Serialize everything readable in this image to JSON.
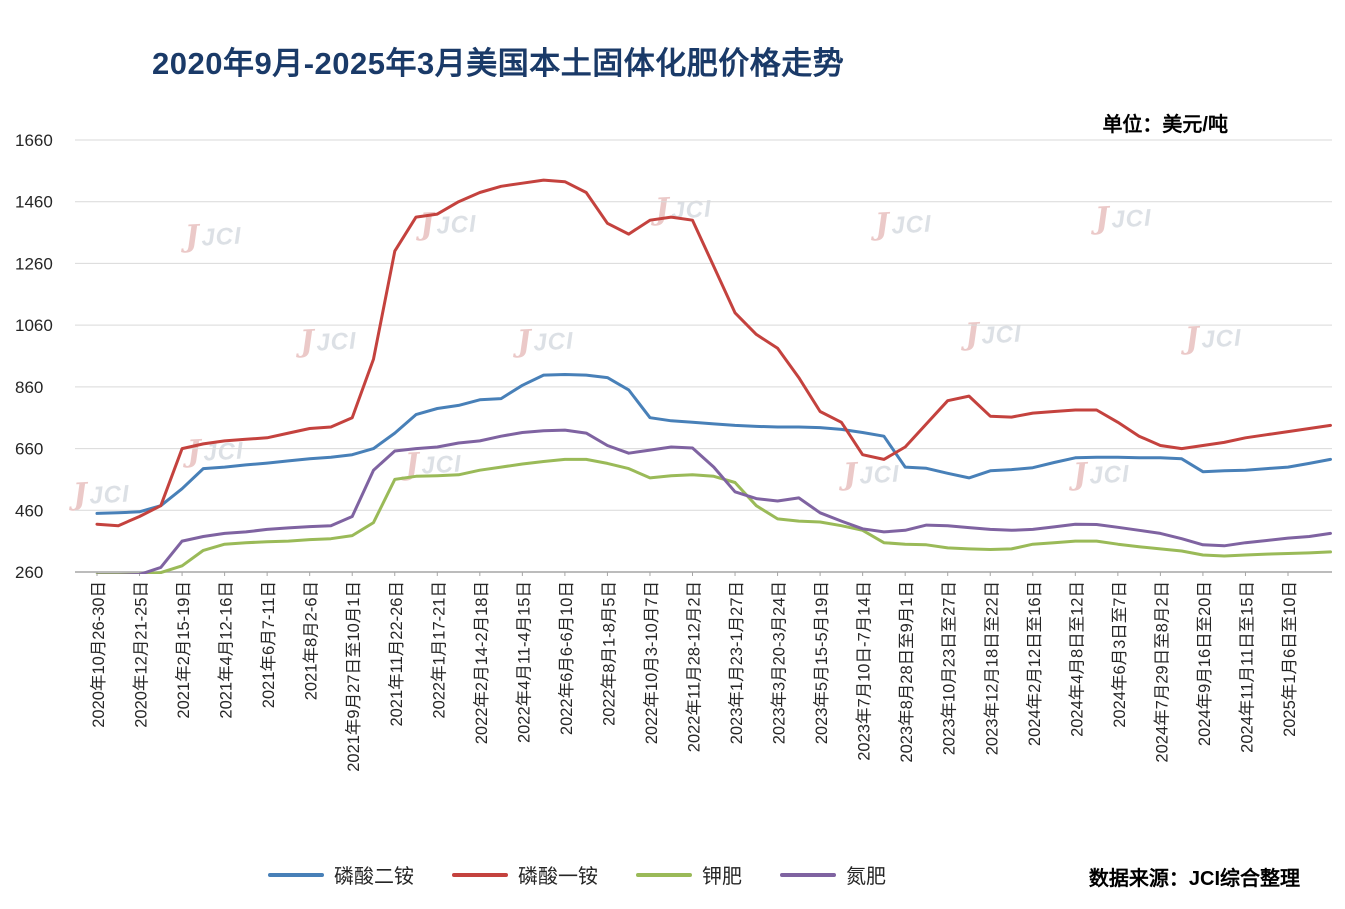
{
  "title": "2020年9月-2025年3月美国本土固体化肥价格走势",
  "unit_label": "单位：美元/吨",
  "source_label": "数据来源：JCI综合整理",
  "watermark": {
    "mark": "J",
    "text": "JCI"
  },
  "chart_data": {
    "type": "line",
    "title": "2020年9月-2025年3月美国本土固体化肥价格走势",
    "xlabel": "",
    "ylabel": "美元/吨",
    "ylim": [
      260,
      1660
    ],
    "yticks": [
      260,
      460,
      660,
      860,
      1060,
      1260,
      1460,
      1660
    ],
    "grid": "horizontal",
    "legend_position": "bottom",
    "points_per_label": 2,
    "x_labels": [
      "2020年10月26-30日",
      "2020年12月21-25日",
      "2021年2月15-19日",
      "2021年4月12-16日",
      "2021年6月7-11日",
      "2021年8月2-6日",
      "2021年9月27日至10月1日",
      "2021年11月22-26日",
      "2022年1月17-21日",
      "2022年2月14-2月18日",
      "2022年4月11-4月15日",
      "2022年6月6-6月10日",
      "2022年8月1-8月5日",
      "2022年10月3-10月7日",
      "2022年11月28-12月2日",
      "2023年1月23-1月27日",
      "2023年3月20-3月24日",
      "2023年5月15-5月19日",
      "2023年7月10日-7月14日",
      "2023年8月28日至9月1日",
      "2023年10月23日至27日",
      "2023年12月18日至22日",
      "2024年2月12日至16日",
      "2024年4月8日至12日",
      "2024年6月3日至7日",
      "2024年7月29日至8月2日",
      "2024年9月16日至20日",
      "2024年11月11日至15日",
      "2025年1月6日至10日"
    ],
    "series": [
      {
        "id": "dap",
        "name": "磷酸二铵",
        "color": "#4880B8",
        "values": [
          450,
          452,
          455,
          475,
          530,
          595,
          600,
          607,
          613,
          620,
          627,
          632,
          640,
          660,
          710,
          770,
          790,
          800,
          818,
          822,
          865,
          898,
          900,
          898,
          890,
          850,
          760,
          750,
          745,
          740,
          735,
          732,
          730,
          730,
          728,
          722,
          712,
          700,
          600,
          596,
          580,
          565,
          588,
          592,
          598,
          615,
          630,
          632,
          632,
          630,
          630,
          627,
          585,
          588,
          590,
          595,
          600,
          612,
          625
        ]
      },
      {
        "id": "map",
        "name": "磷酸一铵",
        "color": "#C4423E",
        "values": [
          415,
          410,
          440,
          475,
          660,
          675,
          685,
          690,
          695,
          710,
          725,
          730,
          760,
          950,
          1300,
          1410,
          1420,
          1460,
          1490,
          1510,
          1520,
          1530,
          1525,
          1490,
          1390,
          1355,
          1400,
          1410,
          1400,
          1250,
          1100,
          1030,
          985,
          890,
          780,
          745,
          640,
          625,
          665,
          740,
          815,
          830,
          765,
          762,
          775,
          780,
          785,
          785,
          745,
          700,
          670,
          660,
          670,
          680,
          695,
          705,
          715,
          725,
          735
        ]
      },
      {
        "id": "potash",
        "name": "钾肥",
        "color": "#9ABA58",
        "values": [
          252,
          252,
          253,
          258,
          280,
          330,
          350,
          355,
          358,
          360,
          365,
          368,
          378,
          420,
          560,
          570,
          572,
          575,
          590,
          600,
          610,
          618,
          625,
          625,
          612,
          595,
          565,
          572,
          575,
          570,
          550,
          475,
          432,
          425,
          422,
          410,
          395,
          355,
          350,
          348,
          338,
          335,
          333,
          335,
          350,
          355,
          360,
          360,
          350,
          342,
          335,
          328,
          315,
          312,
          315,
          318,
          320,
          322,
          325
        ]
      },
      {
        "id": "nitrogen",
        "name": "氮肥",
        "color": "#7F63A1",
        "values": [
          250,
          250,
          252,
          275,
          360,
          375,
          385,
          390,
          398,
          403,
          407,
          410,
          440,
          590,
          652,
          660,
          665,
          678,
          685,
          700,
          712,
          718,
          720,
          710,
          670,
          645,
          655,
          665,
          662,
          600,
          520,
          498,
          490,
          500,
          452,
          425,
          400,
          390,
          395,
          412,
          410,
          404,
          398,
          395,
          398,
          406,
          415,
          414,
          405,
          395,
          385,
          368,
          348,
          345,
          355,
          362,
          370,
          375,
          385
        ]
      }
    ]
  }
}
